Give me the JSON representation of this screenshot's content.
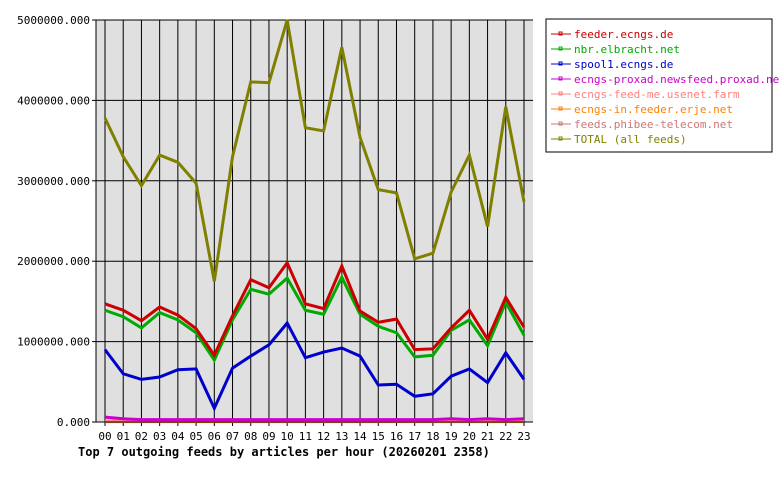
{
  "chart_data": {
    "type": "line",
    "title": "Top 7 outgoing feeds by articles per hour (20260201 2358)",
    "xlabel": "",
    "ylabel": "",
    "ylim": [
      0,
      5000000
    ],
    "yticks": [
      0,
      1000000,
      2000000,
      3000000,
      4000000,
      5000000
    ],
    "ytick_labels": [
      "0.000",
      "1000000.000",
      "2000000.000",
      "3000000.000",
      "4000000.000",
      "5000000.000"
    ],
    "grid": true,
    "legend_placement": "right",
    "categories": [
      "00",
      "01",
      "02",
      "03",
      "04",
      "05",
      "06",
      "07",
      "08",
      "09",
      "10",
      "11",
      "12",
      "13",
      "14",
      "15",
      "16",
      "17",
      "18",
      "19",
      "20",
      "21",
      "22",
      "23"
    ],
    "series": [
      {
        "name": "feeder.ecngs.de",
        "color": "#cc0000",
        "values": [
          1470000,
          1390000,
          1260000,
          1430000,
          1330000,
          1160000,
          830000,
          1320000,
          1770000,
          1670000,
          1980000,
          1470000,
          1410000,
          1940000,
          1380000,
          1240000,
          1280000,
          900000,
          910000,
          1170000,
          1390000,
          1030000,
          1550000,
          1180000
        ]
      },
      {
        "name": "nbr.elbracht.net",
        "color": "#00aa00",
        "values": [
          1390000,
          1310000,
          1170000,
          1360000,
          1270000,
          1110000,
          770000,
          1270000,
          1650000,
          1590000,
          1790000,
          1390000,
          1340000,
          1800000,
          1340000,
          1190000,
          1110000,
          810000,
          830000,
          1140000,
          1270000,
          950000,
          1490000,
          1080000
        ]
      },
      {
        "name": "spool1.ecngs.de",
        "color": "#0000cc",
        "values": [
          900000,
          600000,
          530000,
          560000,
          650000,
          660000,
          170000,
          670000,
          820000,
          960000,
          1230000,
          800000,
          870000,
          920000,
          820000,
          460000,
          470000,
          320000,
          350000,
          570000,
          660000,
          490000,
          860000,
          530000
        ]
      },
      {
        "name": "ecngs-proxad.newsfeed.proxad.net",
        "color": "#cc00cc",
        "values": [
          60000,
          40000,
          30000,
          30000,
          30000,
          30000,
          30000,
          30000,
          30000,
          30000,
          30000,
          30000,
          30000,
          30000,
          30000,
          30000,
          30000,
          30000,
          30000,
          40000,
          30000,
          40000,
          30000,
          40000
        ]
      },
      {
        "name": "ecngs-feed-me.usenet.farm",
        "color": "#ff8080",
        "values": [
          10000,
          10000,
          10000,
          10000,
          10000,
          30000,
          30000,
          10000,
          10000,
          10000,
          10000,
          10000,
          10000,
          10000,
          10000,
          10000,
          10000,
          10000,
          10000,
          10000,
          10000,
          10000,
          30000,
          10000
        ]
      },
      {
        "name": "ecngs-in.feeder.erje.net",
        "color": "#ff8000",
        "values": [
          5000,
          5000,
          5000,
          5000,
          5000,
          5000,
          5000,
          5000,
          5000,
          5000,
          5000,
          5000,
          5000,
          5000,
          5000,
          5000,
          5000,
          5000,
          5000,
          5000,
          5000,
          5000,
          5000,
          5000
        ]
      },
      {
        "name": "feeds.phibee-telecom.net",
        "color": "#cc7777",
        "values": [
          10000,
          10000,
          10000,
          10000,
          10000,
          10000,
          10000,
          10000,
          10000,
          10000,
          10000,
          10000,
          10000,
          10000,
          10000,
          10000,
          10000,
          10000,
          10000,
          10000,
          10000,
          10000,
          10000,
          10000
        ]
      },
      {
        "name": "TOTAL (all feeds)",
        "color": "#808000",
        "values": [
          3780000,
          3300000,
          2940000,
          3320000,
          3230000,
          2970000,
          1750000,
          3300000,
          4230000,
          4220000,
          5000000,
          3660000,
          3620000,
          4660000,
          3540000,
          2890000,
          2850000,
          2030000,
          2100000,
          2860000,
          3320000,
          2430000,
          3920000,
          2740000
        ]
      }
    ]
  }
}
